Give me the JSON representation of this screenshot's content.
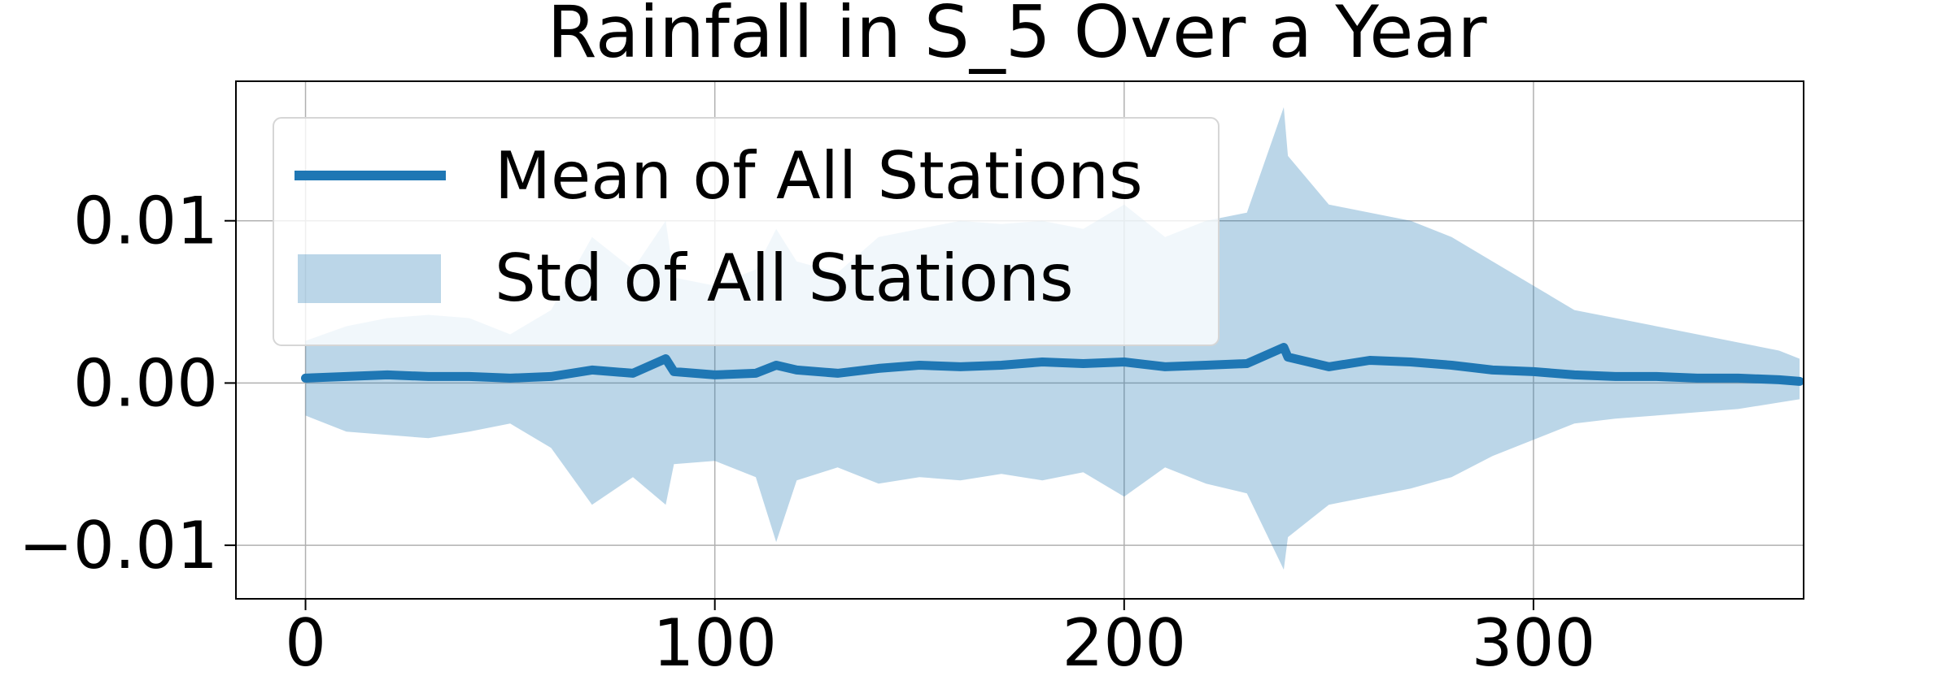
{
  "chart_data": {
    "type": "line",
    "title": "Rainfall in S_5 Over a Year",
    "xlabel": "",
    "ylabel": "",
    "xlim": [
      -17,
      366
    ],
    "ylim": [
      -0.0133,
      0.0186
    ],
    "x_ticks": [
      0,
      100,
      200,
      300
    ],
    "x_tick_labels": [
      "0",
      "100",
      "200",
      "300"
    ],
    "y_ticks": [
      -0.01,
      0.0,
      0.01
    ],
    "y_tick_labels": [
      "−0.01",
      "0.00",
      "0.01"
    ],
    "grid": true,
    "legend_position": "upper left",
    "colors": {
      "mean_line": "#1f77b4",
      "std_fill": "#1f77b4",
      "grid": "#b0b0b0"
    },
    "x": [
      0,
      10,
      20,
      30,
      40,
      50,
      60,
      70,
      80,
      88,
      90,
      100,
      110,
      115,
      120,
      130,
      140,
      150,
      160,
      170,
      180,
      190,
      200,
      210,
      220,
      230,
      239,
      240,
      250,
      260,
      270,
      280,
      290,
      300,
      310,
      320,
      330,
      340,
      350,
      360,
      365
    ],
    "series": [
      {
        "name": "Mean of All Stations",
        "kind": "line",
        "values": [
          0.0003,
          0.0004,
          0.0005,
          0.0004,
          0.0004,
          0.0003,
          0.0004,
          0.0008,
          0.0006,
          0.0015,
          0.0007,
          0.0005,
          0.0006,
          0.0011,
          0.0008,
          0.0006,
          0.0009,
          0.0011,
          0.001,
          0.0011,
          0.0013,
          0.0012,
          0.0013,
          0.001,
          0.0011,
          0.0012,
          0.0022,
          0.0016,
          0.001,
          0.0014,
          0.0013,
          0.0011,
          0.0008,
          0.0007,
          0.0005,
          0.0004,
          0.0004,
          0.0003,
          0.0003,
          0.0002,
          0.0001
        ]
      },
      {
        "name": "Std of All Stations",
        "kind": "band",
        "upper": [
          0.0026,
          0.0035,
          0.004,
          0.0042,
          0.004,
          0.003,
          0.0045,
          0.009,
          0.007,
          0.01,
          0.0065,
          0.006,
          0.007,
          0.0095,
          0.0075,
          0.0068,
          0.009,
          0.0095,
          0.01,
          0.0098,
          0.01,
          0.0095,
          0.011,
          0.009,
          0.01,
          0.0105,
          0.017,
          0.014,
          0.011,
          0.0105,
          0.01,
          0.009,
          0.0075,
          0.006,
          0.0045,
          0.004,
          0.0035,
          0.003,
          0.0025,
          0.002,
          0.0015
        ],
        "lower": [
          -0.002,
          -0.003,
          -0.0032,
          -0.0034,
          -0.003,
          -0.0025,
          -0.004,
          -0.0075,
          -0.0058,
          -0.0075,
          -0.005,
          -0.0048,
          -0.0058,
          -0.0098,
          -0.006,
          -0.0052,
          -0.0062,
          -0.0058,
          -0.006,
          -0.0056,
          -0.006,
          -0.0055,
          -0.007,
          -0.0052,
          -0.0062,
          -0.0068,
          -0.0115,
          -0.0095,
          -0.0075,
          -0.007,
          -0.0065,
          -0.0058,
          -0.0045,
          -0.0035,
          -0.0025,
          -0.0022,
          -0.002,
          -0.0018,
          -0.0016,
          -0.0012,
          -0.001
        ]
      }
    ]
  }
}
